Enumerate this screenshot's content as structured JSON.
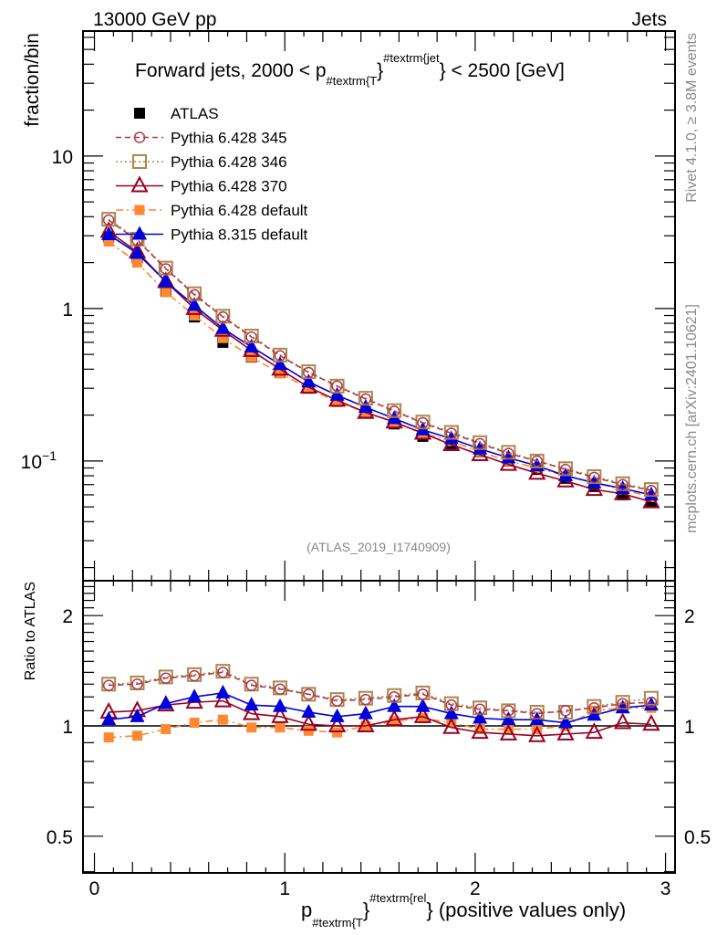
{
  "chart_data": [
    {
      "type": "line",
      "panel": "main",
      "title": "Forward jets, 2000 < p_{#textrm{T}}^{#textrm{jet}} < 2500 [GeV]",
      "header_left": "13000 GeV pp",
      "header_right": "Jets",
      "xlabel": "",
      "ylabel": "fraction/bin",
      "yscale": "log",
      "xlim": [
        -0.06,
        3.05
      ],
      "ylim": [
        0.0164,
        66
      ],
      "x_ticks": [
        "0",
        "1",
        "2",
        "3"
      ],
      "y_ticks": [
        "10^-1",
        "1",
        "10"
      ],
      "analysis_tag": "(ATLAS_2019_I1740909)",
      "side_text_top": "Rivet 4.1.0, ≥ 3.8M events",
      "side_text_bottom": "mcplots.cern.ch [arXiv:2401.10621]",
      "legend_position": "top-left",
      "x": [
        0.075,
        0.225,
        0.375,
        0.525,
        0.675,
        0.825,
        0.975,
        1.125,
        1.275,
        1.425,
        1.575,
        1.725,
        1.875,
        2.025,
        2.175,
        2.325,
        2.475,
        2.625,
        2.775,
        2.925
      ],
      "series": [
        {
          "name": "ATLAS",
          "color": "#000000",
          "style": "marker-square",
          "values": [
            2.95,
            2.15,
            1.3,
            0.88,
            0.6,
            0.48,
            0.38,
            0.3,
            0.25,
            0.21,
            0.175,
            0.145,
            0.13,
            0.115,
            0.1,
            0.088,
            0.077,
            0.068,
            0.06,
            0.054
          ]
        },
        {
          "name": "Pythia 6.428 345",
          "color": "#b03a48",
          "style": "dashed-circle",
          "values": [
            3.8,
            2.8,
            1.82,
            1.23,
            0.88,
            0.65,
            0.49,
            0.38,
            0.31,
            0.255,
            0.212,
            0.178,
            0.152,
            0.13,
            0.112,
            0.1,
            0.088,
            0.078,
            0.07,
            0.064
          ]
        },
        {
          "name": "Pythia 6.428 346",
          "color": "#a88850",
          "style": "dotted-square-open",
          "values": [
            3.85,
            2.85,
            1.84,
            1.25,
            0.89,
            0.66,
            0.495,
            0.385,
            0.31,
            0.258,
            0.214,
            0.18,
            0.154,
            0.132,
            0.114,
            0.1,
            0.089,
            0.079,
            0.071,
            0.065
          ]
        },
        {
          "name": "Pythia 6.428 370",
          "color": "#990022",
          "style": "solid-triangle-open",
          "values": [
            3.2,
            2.35,
            1.5,
            1.0,
            0.72,
            0.53,
            0.4,
            0.305,
            0.25,
            0.208,
            0.18,
            0.152,
            0.128,
            0.11,
            0.095,
            0.083,
            0.074,
            0.065,
            0.061,
            0.054
          ]
        },
        {
          "name": "Pythia 6.428 default",
          "color": "#ff8833",
          "style": "dashdot-square",
          "values": [
            2.75,
            2.0,
            1.28,
            0.9,
            0.64,
            0.48,
            0.375,
            0.3,
            0.243,
            0.21,
            0.18,
            0.152,
            0.135,
            0.115,
            0.1,
            0.09,
            0.08,
            0.072,
            0.065,
            0.058
          ]
        },
        {
          "name": "Pythia 8.315 default",
          "color": "#0000dd",
          "style": "solid-triangle",
          "values": [
            3.05,
            2.3,
            1.5,
            1.05,
            0.74,
            0.56,
            0.43,
            0.33,
            0.27,
            0.225,
            0.19,
            0.16,
            0.14,
            0.12,
            0.105,
            0.093,
            0.08,
            0.072,
            0.066,
            0.06
          ]
        }
      ]
    },
    {
      "type": "line",
      "panel": "ratio",
      "xlabel": "p_{#textrm{T}}^{#textrm{rel}} (positive values only)",
      "ylabel": "Ratio to ATLAS",
      "yscale": "log",
      "xlim": [
        -0.06,
        3.05
      ],
      "ylim": [
        0.397,
        2.49
      ],
      "x_ticks": [
        "0",
        "1",
        "2",
        "3"
      ],
      "y_ticks": [
        "0.5",
        "1",
        "2"
      ],
      "reference_line": 1,
      "x": [
        0.075,
        0.225,
        0.375,
        0.525,
        0.675,
        0.825,
        0.975,
        1.125,
        1.275,
        1.425,
        1.575,
        1.725,
        1.875,
        2.025,
        2.175,
        2.325,
        2.475,
        2.625,
        2.775,
        2.925
      ],
      "series": [
        {
          "name": "Pythia 6.428 345",
          "color": "#b03a48",
          "style": "dashed-circle",
          "values": [
            1.29,
            1.3,
            1.35,
            1.37,
            1.4,
            1.29,
            1.26,
            1.22,
            1.17,
            1.18,
            1.2,
            1.22,
            1.14,
            1.11,
            1.1,
            1.08,
            1.1,
            1.12,
            1.15,
            1.16
          ]
        },
        {
          "name": "Pythia 6.428 346",
          "color": "#a88850",
          "style": "dotted-square-open",
          "values": [
            1.3,
            1.31,
            1.36,
            1.38,
            1.41,
            1.3,
            1.27,
            1.22,
            1.18,
            1.19,
            1.21,
            1.23,
            1.15,
            1.12,
            1.1,
            1.09,
            1.09,
            1.13,
            1.16,
            1.19
          ]
        },
        {
          "name": "Pythia 6.428 370",
          "color": "#990022",
          "style": "solid-triangle-open",
          "values": [
            1.09,
            1.1,
            1.14,
            1.16,
            1.17,
            1.08,
            1.06,
            1.01,
            1.0,
            1.0,
            1.04,
            1.06,
            0.99,
            0.96,
            0.95,
            0.94,
            0.95,
            0.96,
            1.02,
            1.01
          ]
        },
        {
          "name": "Pythia 6.428 default",
          "color": "#ff8833",
          "style": "dashdot-square",
          "values": [
            0.93,
            0.94,
            0.98,
            1.02,
            1.04,
            0.99,
            0.99,
            0.97,
            0.96,
            1.0,
            1.03,
            1.05,
            1.02,
            0.98,
            0.98,
            0.98,
            1.0,
            1.1,
            1.12,
            1.12
          ]
        },
        {
          "name": "Pythia 8.315 default",
          "color": "#0000dd",
          "style": "solid-triangle",
          "values": [
            1.04,
            1.06,
            1.15,
            1.2,
            1.23,
            1.14,
            1.13,
            1.09,
            1.06,
            1.08,
            1.13,
            1.13,
            1.08,
            1.05,
            1.04,
            1.04,
            1.02,
            1.07,
            1.12,
            1.14
          ]
        }
      ]
    }
  ]
}
